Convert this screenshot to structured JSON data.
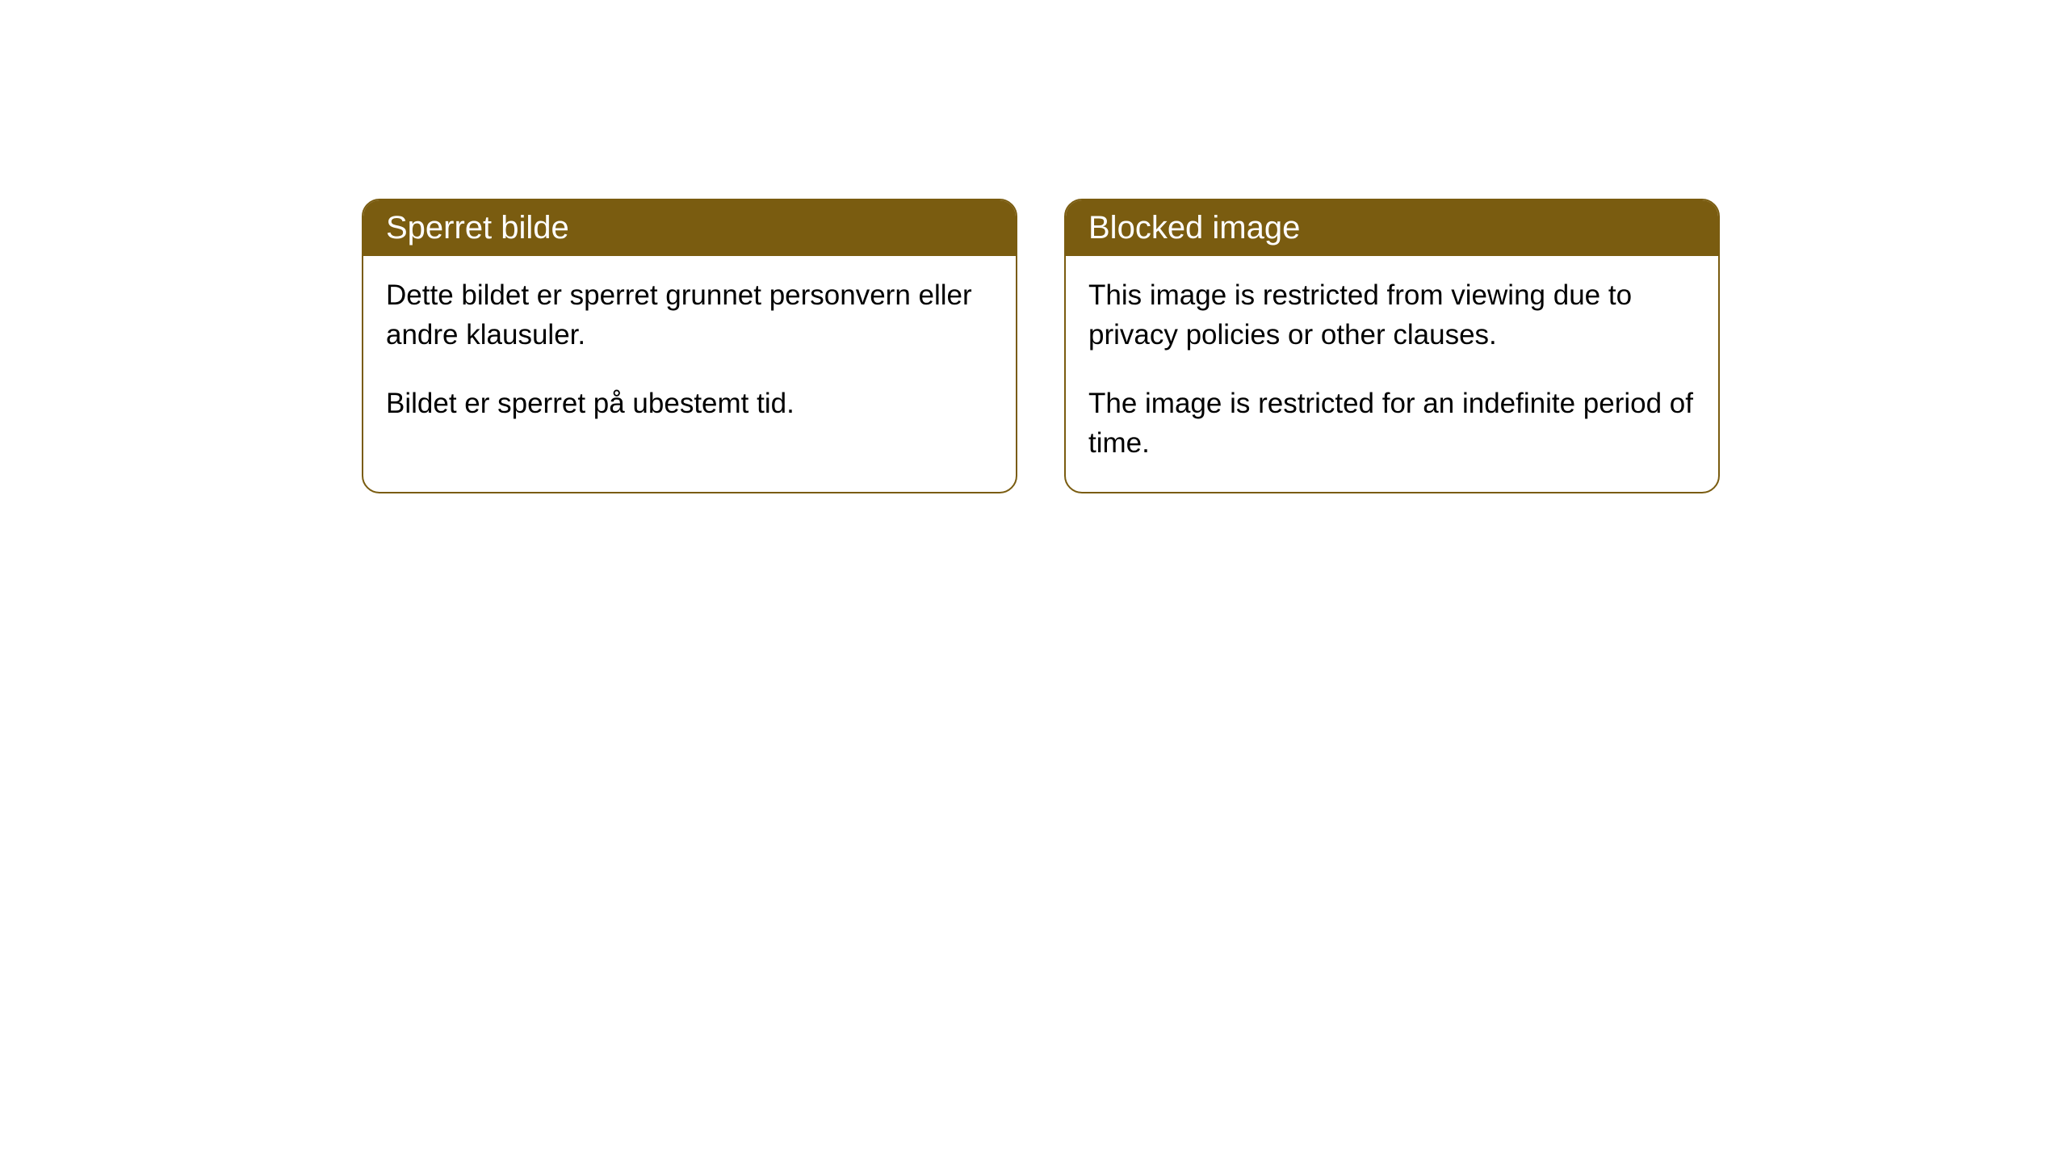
{
  "cards": [
    {
      "title": "Sperret bilde",
      "paragraph1": "Dette bildet er sperret grunnet personvern eller andre klausuler.",
      "paragraph2": "Bildet er sperret på ubestemt tid."
    },
    {
      "title": "Blocked image",
      "paragraph1": "This image is restricted from viewing due to privacy policies or other clauses.",
      "paragraph2": "The image is restricted for an indefinite period of time."
    }
  ],
  "styling": {
    "header_bg_color": "#7a5c10",
    "header_text_color": "#ffffff",
    "border_color": "#7a5c10",
    "body_bg_color": "#ffffff",
    "body_text_color": "#000000",
    "border_radius": 22,
    "title_fontsize": 40,
    "body_fontsize": 35
  }
}
